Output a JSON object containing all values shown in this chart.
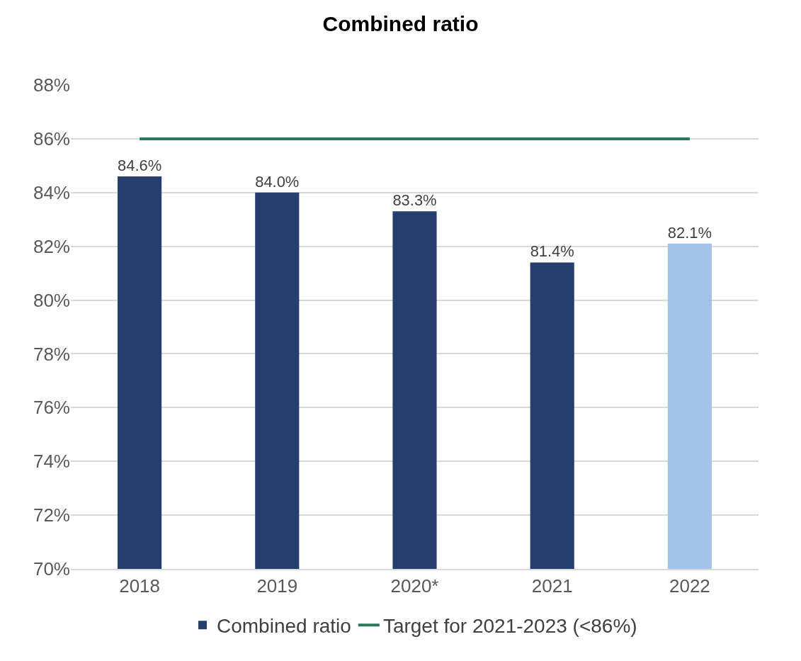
{
  "chart_data": {
    "type": "bar",
    "title": "Combined ratio",
    "categories": [
      "2018",
      "2019",
      "2020*",
      "2021",
      "2022"
    ],
    "series": [
      {
        "name": "Combined ratio",
        "colors": [
          "#243e6e",
          "#243e6e",
          "#243e6e",
          "#243e6e",
          "#a3c4e8"
        ],
        "values": [
          84.6,
          84.0,
          83.3,
          81.4,
          82.1
        ],
        "value_labels": [
          "84.6%",
          "84.0%",
          "83.3%",
          "81.4%",
          "82.1%"
        ]
      },
      {
        "type": "line",
        "name": "Target for 2021-2023 (<86%)",
        "color": "#2a7a5a",
        "values": [
          86,
          86,
          86,
          86,
          86
        ]
      }
    ],
    "ylim": [
      70,
      88
    ],
    "yticks": [
      {
        "value": 70,
        "label": "70%"
      },
      {
        "value": 72,
        "label": "72%"
      },
      {
        "value": 74,
        "label": "74%"
      },
      {
        "value": 76,
        "label": "76%"
      },
      {
        "value": 78,
        "label": "78%"
      },
      {
        "value": 80,
        "label": "80%"
      },
      {
        "value": 82,
        "label": "82%"
      },
      {
        "value": 84,
        "label": "84%"
      },
      {
        "value": 86,
        "label": "86%"
      },
      {
        "value": 88,
        "label": "88%"
      }
    ],
    "grid": "y",
    "legend": "bottom"
  }
}
